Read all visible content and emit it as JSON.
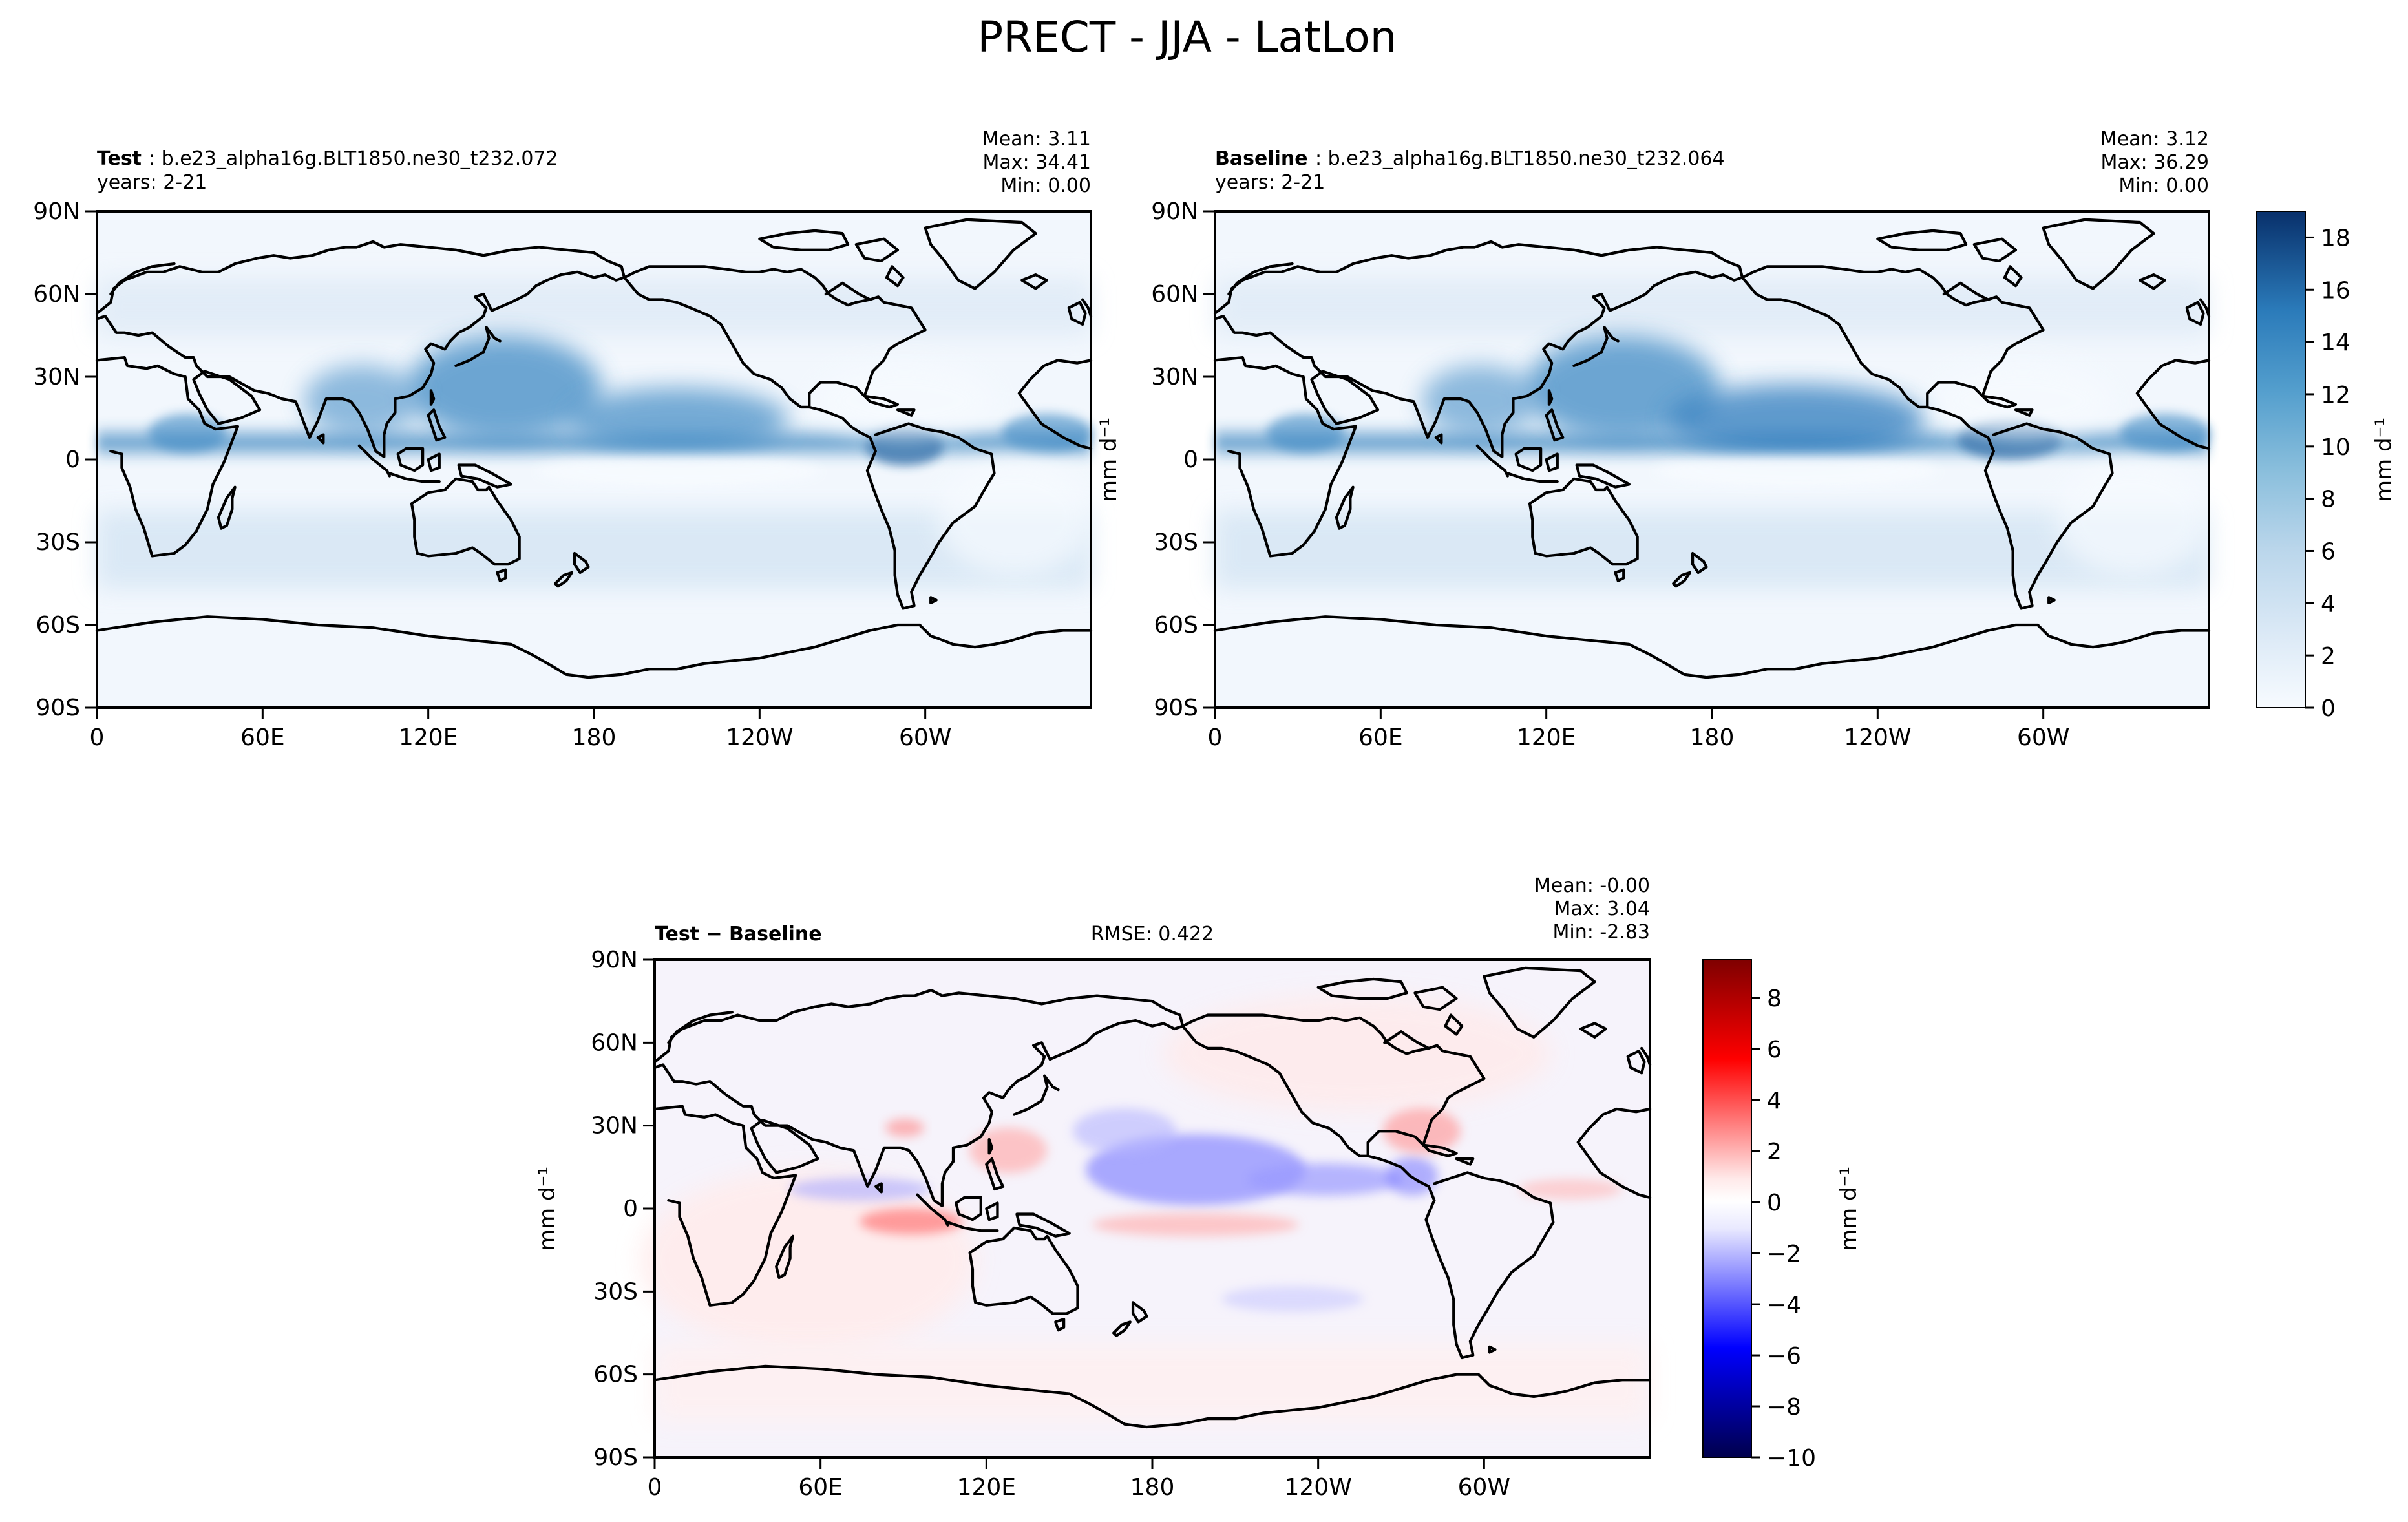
{
  "figure": {
    "title": "PRECT - JJA - LatLon"
  },
  "chart_data": [
    {
      "type": "heatmap",
      "panel": "test",
      "label_bold": "Test",
      "label_rest": ": b.e23_alpha16g.BLT1850.ne30_t232.072",
      "years": "years: 2-21",
      "stats": [
        "Mean:  3.11",
        "Max: 34.41",
        "Min:  0.00"
      ],
      "ylabel": "mm d⁻¹",
      "x_ticks": [
        "0",
        "60E",
        "120E",
        "180",
        "120W",
        "60W"
      ],
      "x_tick_lons": [
        0,
        60,
        120,
        180,
        240,
        300
      ],
      "y_ticks": [
        "90N",
        "60N",
        "30N",
        "0",
        "30S",
        "60S",
        "90S"
      ],
      "y_tick_lats": [
        90,
        60,
        30,
        0,
        -30,
        -60,
        -90
      ],
      "xlim": [
        0,
        360
      ],
      "ylim": [
        -90,
        90
      ],
      "mean": 3.11,
      "max": 34.41,
      "min": 0.0
    },
    {
      "type": "heatmap",
      "panel": "baseline",
      "label_bold": "Baseline",
      "label_rest": ": b.e23_alpha16g.BLT1850.ne30_t232.064",
      "years": "years: 2-21",
      "stats": [
        "Mean:  3.12",
        "Max: 36.29",
        "Min:  0.00"
      ],
      "x_ticks": [
        "0",
        "60E",
        "120E",
        "180",
        "120W",
        "60W"
      ],
      "x_tick_lons": [
        0,
        60,
        120,
        180,
        240,
        300
      ],
      "y_ticks": [
        "90N",
        "60N",
        "30N",
        "0",
        "30S",
        "60S",
        "90S"
      ],
      "y_tick_lats": [
        90,
        60,
        30,
        0,
        -30,
        -60,
        -90
      ],
      "xlim": [
        0,
        360
      ],
      "ylim": [
        -90,
        90
      ],
      "mean": 3.12,
      "max": 36.29,
      "min": 0.0,
      "colorbar": {
        "label": "mm d⁻¹",
        "range": [
          0,
          19
        ],
        "ticks": [
          0,
          2,
          4,
          6,
          8,
          10,
          12,
          14,
          16,
          18
        ],
        "tick_labels": [
          "0",
          "2",
          "4",
          "6",
          "8",
          "10",
          "12",
          "14",
          "16",
          "18"
        ]
      }
    },
    {
      "type": "heatmap",
      "panel": "difference",
      "label_bold": "Test − Baseline",
      "rmse": "RMSE: 0.422",
      "stats": [
        "Mean: -0.00",
        "Max:  3.04",
        "Min: -2.83"
      ],
      "ylabel": "mm d⁻¹",
      "x_ticks": [
        "0",
        "60E",
        "120E",
        "180",
        "120W",
        "60W"
      ],
      "x_tick_lons": [
        0,
        60,
        120,
        180,
        240,
        300
      ],
      "y_ticks": [
        "90N",
        "60N",
        "30N",
        "0",
        "30S",
        "60S",
        "90S"
      ],
      "y_tick_lats": [
        90,
        60,
        30,
        0,
        -30,
        -60,
        -90
      ],
      "xlim": [
        0,
        360
      ],
      "ylim": [
        -90,
        90
      ],
      "mean": -0.0,
      "max": 3.04,
      "min": -2.83,
      "colorbar": {
        "label": "mm d⁻¹",
        "range": [
          -10,
          9.5
        ],
        "ticks": [
          -10,
          -8,
          -6,
          -4,
          -2,
          0,
          2,
          4,
          6,
          8
        ],
        "tick_labels": [
          "−10",
          "−8",
          "−6",
          "−4",
          "−2",
          "0",
          "2",
          "4",
          "6",
          "8"
        ]
      }
    }
  ]
}
